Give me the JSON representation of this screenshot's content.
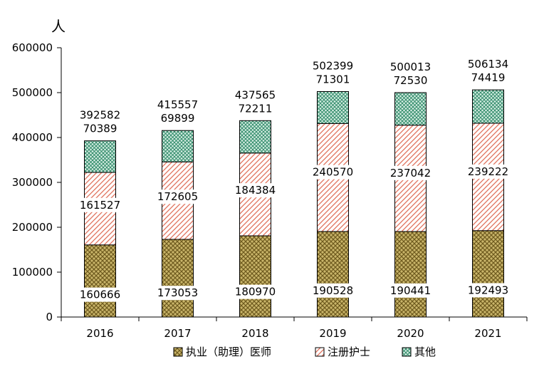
{
  "chart_data": {
    "type": "bar",
    "stacked": true,
    "unit_label": "人",
    "categories": [
      "2016",
      "2017",
      "2018",
      "2019",
      "2020",
      "2021"
    ],
    "series": [
      {
        "name": "执业（助理）医师",
        "values": [
          160666,
          173053,
          180970,
          190528,
          190441,
          192493
        ],
        "pattern": "grid",
        "color": "#a08a3c"
      },
      {
        "name": "注册护士",
        "values": [
          161527,
          172605,
          184384,
          240570,
          237042,
          239222
        ],
        "pattern": "diagonal",
        "color": "#e8735a"
      },
      {
        "name": "其他",
        "values": [
          70389,
          69899,
          72211,
          71301,
          72530,
          74419
        ],
        "pattern": "dots",
        "color": "#3a9a78"
      }
    ],
    "totals": [
      392582,
      415557,
      437565,
      502399,
      500013,
      506134
    ],
    "y_ticks": [
      "0",
      "100000",
      "200000",
      "300000",
      "400000",
      "500000",
      "600000"
    ],
    "ylim": [
      0,
      600000
    ],
    "legend_position": "bottom",
    "grid": false
  }
}
